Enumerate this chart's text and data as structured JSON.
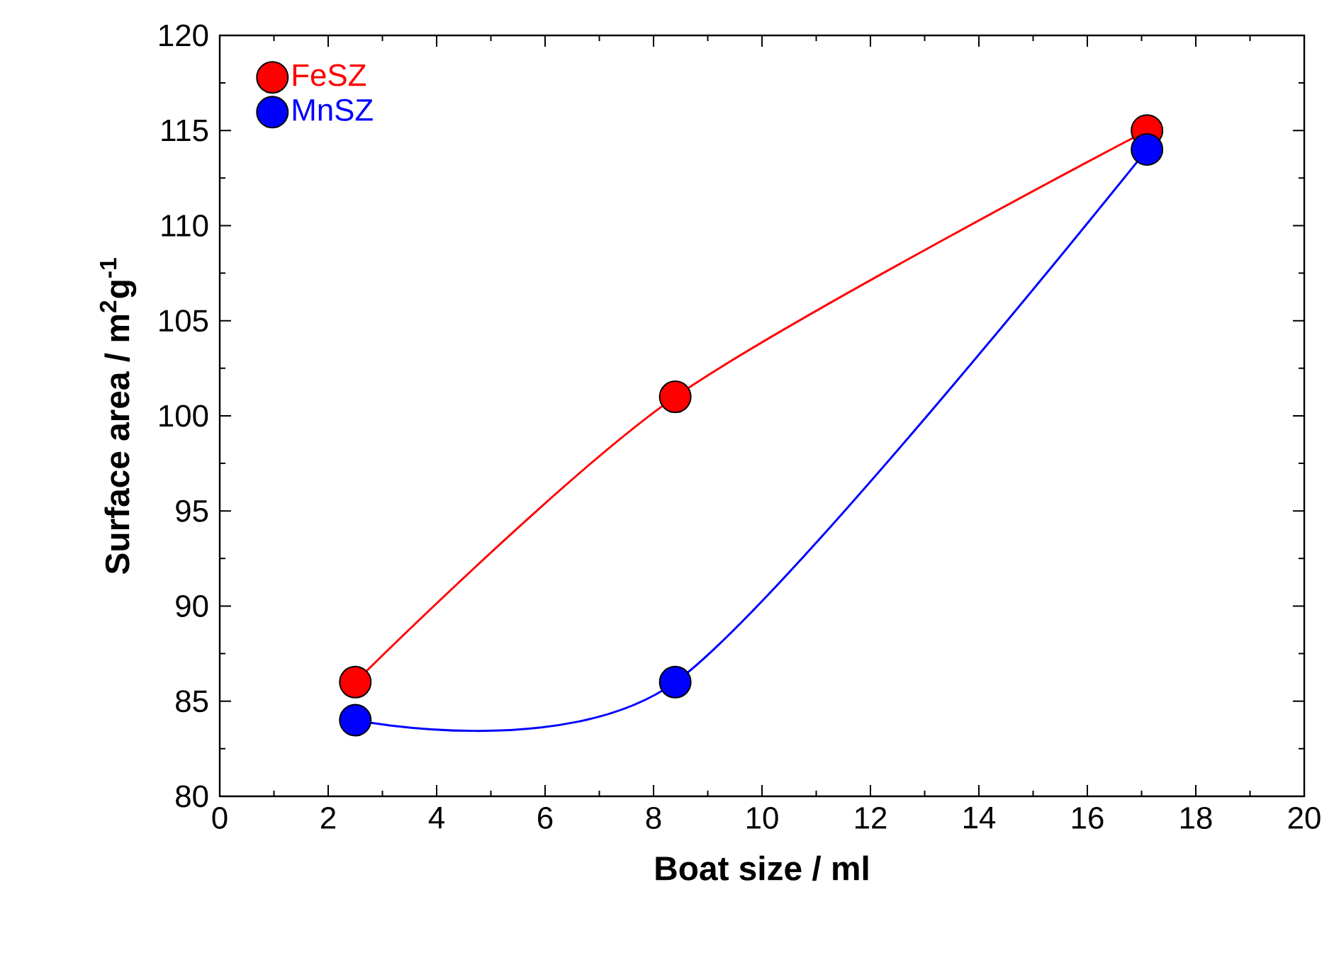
{
  "chart_data": {
    "type": "line",
    "xlabel": "Boat size / ml",
    "ylabel": "Surface area / m$^{2}$g$^{-1}$",
    "x": [
      2.5,
      8.4,
      17.1
    ],
    "series": [
      {
        "name": "FeSZ",
        "color": "#ff0000",
        "values": [
          86,
          101,
          115
        ]
      },
      {
        "name": "MnSZ",
        "color": "#0000ff",
        "values": [
          84,
          86,
          114
        ]
      }
    ],
    "xlim": [
      0,
      20
    ],
    "xticks": [
      0,
      2,
      4,
      6,
      8,
      10,
      12,
      14,
      16,
      18,
      20
    ],
    "ylim": [
      80,
      120
    ],
    "yticks": [
      80,
      85,
      90,
      95,
      100,
      105,
      110,
      115,
      120
    ],
    "grid": false,
    "legend": "top left",
    "marker": "circle",
    "line_style": "solid"
  }
}
